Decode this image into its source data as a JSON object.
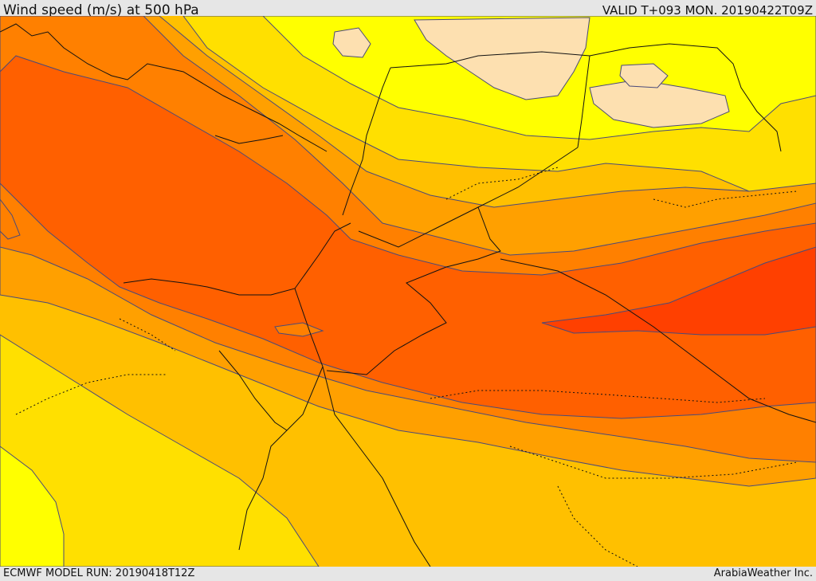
{
  "header": {
    "title": "Wind speed (m/s) at 500 hPa",
    "valid": "VALID T+093 MON. 20190422T09Z"
  },
  "footer": {
    "model_run": "ECMWF MODEL RUN: 20190418T12Z",
    "credit": "ArabiaWeather Inc."
  },
  "colors": {
    "band_lightest": "#fde0b0",
    "band_yellow": "#ffff00",
    "band_gold": "#ffe000",
    "band_amber": "#ffc000",
    "band_orange": "#ffa000",
    "band_dark_orange": "#ff8000",
    "band_red_orange": "#ff6000",
    "band_red": "#ff4000",
    "contour_line": "#4a4a7a",
    "border_line": "#111111"
  }
}
